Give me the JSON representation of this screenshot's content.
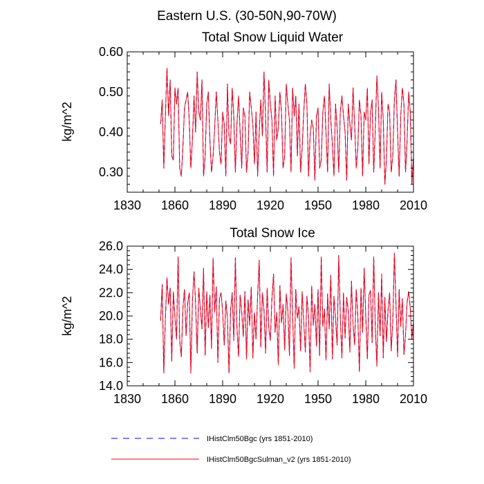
{
  "figure": {
    "title": "Eastern U.S. (30-50N,90-70W)"
  },
  "chart_data": [
    {
      "type": "line",
      "title": "Total Snow Liquid Water",
      "xlabel": "",
      "ylabel": "kg/m^2",
      "xlim": [
        1830,
        2010
      ],
      "ylim": [
        0.25,
        0.6
      ],
      "xticks": [
        "1830",
        "1860",
        "1890",
        "1920",
        "1950",
        "1980",
        "2010"
      ],
      "yticks": [
        "0.30",
        "0.40",
        "0.50",
        "0.60"
      ],
      "x_start": 1851,
      "x_step": 1,
      "series": [
        {
          "name": "IHistClm50Bgc (yrs 1851-2010)",
          "color": "#0000ff",
          "style": "dashed",
          "values": [
            0.42,
            0.48,
            0.31,
            0.44,
            0.56,
            0.44,
            0.53,
            0.34,
            0.33,
            0.51,
            0.47,
            0.51,
            0.31,
            0.29,
            0.36,
            0.46,
            0.48,
            0.5,
            0.43,
            0.31,
            0.38,
            0.49,
            0.4,
            0.55,
            0.45,
            0.43,
            0.53,
            0.29,
            0.34,
            0.47,
            0.5,
            0.38,
            0.3,
            0.34,
            0.41,
            0.5,
            0.43,
            0.35,
            0.32,
            0.45,
            0.42,
            0.29,
            0.52,
            0.39,
            0.37,
            0.51,
            0.44,
            0.3,
            0.42,
            0.49,
            0.4,
            0.31,
            0.46,
            0.44,
            0.3,
            0.35,
            0.5,
            0.46,
            0.42,
            0.32,
            0.45,
            0.29,
            0.4,
            0.48,
            0.39,
            0.55,
            0.44,
            0.3,
            0.53,
            0.47,
            0.43,
            0.29,
            0.49,
            0.38,
            0.41,
            0.5,
            0.45,
            0.31,
            0.34,
            0.52,
            0.47,
            0.43,
            0.3,
            0.51,
            0.44,
            0.49,
            0.34,
            0.47,
            0.3,
            0.36,
            0.45,
            0.52,
            0.47,
            0.29,
            0.39,
            0.43,
            0.41,
            0.28,
            0.44,
            0.46,
            0.31,
            0.33,
            0.45,
            0.49,
            0.4,
            0.3,
            0.52,
            0.43,
            0.37,
            0.29,
            0.47,
            0.41,
            0.3,
            0.45,
            0.49,
            0.44,
            0.4,
            0.28,
            0.47,
            0.42,
            0.38,
            0.51,
            0.42,
            0.31,
            0.36,
            0.48,
            0.44,
            0.29,
            0.45,
            0.43,
            0.51,
            0.32,
            0.45,
            0.48,
            0.3,
            0.41,
            0.54,
            0.46,
            0.31,
            0.5,
            0.43,
            0.27,
            0.33,
            0.47,
            0.45,
            0.3,
            0.34,
            0.48,
            0.53,
            0.4,
            0.29,
            0.44,
            0.51,
            0.47,
            0.3,
            0.38,
            0.5,
            0.45,
            0.27,
            0.34,
            0.46,
            0.44
          ]
        },
        {
          "name": "IHistClm50BgcSulman_v2 (yrs 1851-2010)",
          "color": "#ff0000",
          "style": "solid",
          "values": [
            0.42,
            0.48,
            0.31,
            0.44,
            0.56,
            0.44,
            0.53,
            0.34,
            0.33,
            0.51,
            0.47,
            0.51,
            0.31,
            0.29,
            0.36,
            0.46,
            0.48,
            0.5,
            0.43,
            0.31,
            0.38,
            0.49,
            0.4,
            0.55,
            0.45,
            0.43,
            0.53,
            0.29,
            0.34,
            0.47,
            0.5,
            0.38,
            0.3,
            0.34,
            0.41,
            0.5,
            0.43,
            0.35,
            0.32,
            0.45,
            0.42,
            0.29,
            0.52,
            0.39,
            0.37,
            0.51,
            0.44,
            0.3,
            0.42,
            0.49,
            0.4,
            0.31,
            0.46,
            0.44,
            0.3,
            0.35,
            0.5,
            0.46,
            0.42,
            0.32,
            0.45,
            0.29,
            0.4,
            0.48,
            0.39,
            0.55,
            0.44,
            0.3,
            0.53,
            0.47,
            0.43,
            0.29,
            0.49,
            0.38,
            0.41,
            0.5,
            0.45,
            0.31,
            0.34,
            0.52,
            0.47,
            0.43,
            0.3,
            0.51,
            0.44,
            0.49,
            0.34,
            0.47,
            0.3,
            0.36,
            0.45,
            0.52,
            0.47,
            0.29,
            0.39,
            0.43,
            0.41,
            0.28,
            0.44,
            0.46,
            0.31,
            0.33,
            0.45,
            0.49,
            0.4,
            0.3,
            0.52,
            0.43,
            0.37,
            0.29,
            0.47,
            0.41,
            0.3,
            0.45,
            0.49,
            0.44,
            0.4,
            0.28,
            0.47,
            0.42,
            0.38,
            0.51,
            0.42,
            0.31,
            0.36,
            0.48,
            0.44,
            0.29,
            0.45,
            0.43,
            0.51,
            0.32,
            0.45,
            0.48,
            0.3,
            0.41,
            0.54,
            0.46,
            0.31,
            0.5,
            0.43,
            0.27,
            0.33,
            0.47,
            0.45,
            0.3,
            0.34,
            0.48,
            0.53,
            0.4,
            0.29,
            0.44,
            0.51,
            0.47,
            0.3,
            0.38,
            0.5,
            0.45,
            0.27,
            0.34,
            0.46,
            0.44
          ]
        }
      ]
    },
    {
      "type": "line",
      "title": "Total Snow Ice",
      "xlabel": "",
      "ylabel": "kg/m^2",
      "xlim": [
        1830,
        2010
      ],
      "ylim": [
        14.0,
        26.0
      ],
      "xticks": [
        "1830",
        "1860",
        "1890",
        "1920",
        "1950",
        "1980",
        "2010"
      ],
      "yticks": [
        "14.0",
        "16.0",
        "18.0",
        "20.0",
        "22.0",
        "24.0",
        "26.0"
      ],
      "x_start": 1851,
      "x_step": 1,
      "series": [
        {
          "name": "IHistClm50Bgc (yrs 1851-2010)",
          "color": "#0000ff",
          "style": "dashed",
          "values": [
            19.6,
            22.7,
            15.1,
            19.8,
            23.3,
            21.0,
            22.4,
            16.1,
            22.1,
            19.9,
            18.0,
            25.1,
            17.9,
            16.5,
            20.6,
            22.3,
            18.3,
            21.1,
            22.0,
            15.1,
            21.3,
            23.8,
            21.1,
            16.8,
            22.4,
            20.6,
            18.9,
            24.1,
            16.6,
            22.1,
            19.0,
            21.8,
            17.2,
            25.0,
            20.3,
            22.5,
            16.0,
            21.5,
            22.0,
            20.4,
            17.5,
            21.3,
            19.9,
            15.1,
            20.5,
            22.0,
            17.9,
            25.0,
            19.0,
            16.5,
            21.8,
            20.3,
            18.2,
            22.1,
            16.3,
            21.4,
            19.2,
            22.5,
            16.4,
            20.3,
            18.0,
            21.7,
            24.8,
            17.3,
            22.0,
            20.5,
            16.8,
            22.4,
            19.0,
            17.9,
            21.5,
            23.6,
            18.6,
            20.3,
            15.8,
            22.6,
            19.4,
            21.0,
            17.1,
            21.9,
            20.5,
            16.6,
            25.0,
            20.1,
            15.5,
            22.3,
            19.8,
            20.8,
            17.0,
            22.1,
            19.5,
            16.9,
            21.7,
            20.0,
            15.2,
            22.6,
            19.2,
            21.0,
            17.4,
            22.3,
            16.6,
            25.1,
            19.1,
            20.6,
            16.2,
            21.9,
            18.9,
            23.5,
            16.3,
            21.7,
            19.8,
            17.5,
            25.2,
            19.9,
            16.4,
            22.0,
            18.1,
            21.6,
            20.4,
            16.9,
            23.0,
            19.3,
            17.5,
            22.3,
            20.0,
            15.2,
            22.4,
            18.6,
            24.1,
            20.0,
            16.3,
            21.8,
            22.2,
            17.7,
            25.1,
            19.1,
            15.7,
            22.0,
            18.3,
            23.6,
            16.4,
            21.6,
            17.8,
            20.5,
            22.0,
            17.0,
            19.5,
            25.4,
            21.0,
            16.5,
            22.3,
            19.1,
            21.5,
            16.7,
            18.4,
            21.2,
            22.1,
            20.6,
            18.0,
            19.5,
            22.0,
            20.5
          ]
        },
        {
          "name": "IHistClm50BgcSulman_v2 (yrs 1851-2010)",
          "color": "#ff0000",
          "style": "solid",
          "values": [
            19.6,
            22.7,
            15.1,
            19.8,
            23.3,
            21.0,
            22.4,
            16.1,
            22.1,
            19.9,
            18.0,
            25.1,
            17.9,
            16.5,
            20.6,
            22.3,
            18.3,
            21.1,
            22.0,
            15.1,
            21.3,
            23.8,
            21.1,
            16.8,
            22.4,
            20.6,
            18.9,
            24.1,
            16.6,
            22.1,
            19.0,
            21.8,
            17.2,
            25.0,
            20.3,
            22.5,
            16.0,
            21.5,
            22.0,
            20.4,
            17.5,
            21.3,
            19.9,
            15.1,
            20.5,
            22.0,
            17.9,
            25.0,
            19.0,
            16.5,
            21.8,
            20.3,
            18.2,
            22.1,
            16.3,
            21.4,
            19.2,
            22.5,
            16.4,
            20.3,
            18.0,
            21.7,
            24.8,
            17.3,
            22.0,
            20.5,
            16.8,
            22.4,
            19.0,
            17.9,
            21.5,
            23.6,
            18.6,
            20.3,
            15.8,
            22.6,
            19.4,
            21.0,
            17.1,
            21.9,
            20.5,
            16.6,
            25.0,
            20.1,
            15.5,
            22.3,
            19.8,
            20.8,
            17.0,
            22.1,
            19.5,
            16.9,
            21.7,
            20.0,
            15.2,
            22.6,
            19.2,
            21.0,
            17.4,
            22.3,
            16.6,
            25.1,
            19.1,
            20.6,
            16.2,
            21.9,
            18.9,
            23.5,
            16.3,
            21.7,
            19.8,
            17.5,
            25.2,
            19.9,
            16.4,
            22.0,
            18.1,
            21.6,
            20.4,
            16.9,
            23.0,
            19.3,
            17.5,
            22.3,
            20.0,
            15.2,
            22.4,
            18.6,
            24.1,
            20.0,
            16.3,
            21.8,
            22.2,
            17.7,
            25.1,
            19.1,
            15.7,
            22.0,
            18.3,
            23.6,
            16.4,
            21.6,
            17.8,
            20.5,
            22.0,
            17.0,
            19.5,
            25.4,
            21.0,
            16.5,
            22.3,
            19.1,
            21.5,
            16.7,
            18.4,
            21.2,
            22.1,
            20.6,
            18.0,
            19.5,
            22.0,
            20.5
          ]
        }
      ]
    }
  ],
  "legend": {
    "placement": "bottom",
    "items": [
      {
        "label": "IHistClm50Bgc (yrs 1851-2010)",
        "color": "#0000ff",
        "style": "dashed"
      },
      {
        "label": "IHistClm50BgcSulman_v2 (yrs 1851-2010)",
        "color": "#ff0000",
        "style": "solid"
      }
    ]
  }
}
